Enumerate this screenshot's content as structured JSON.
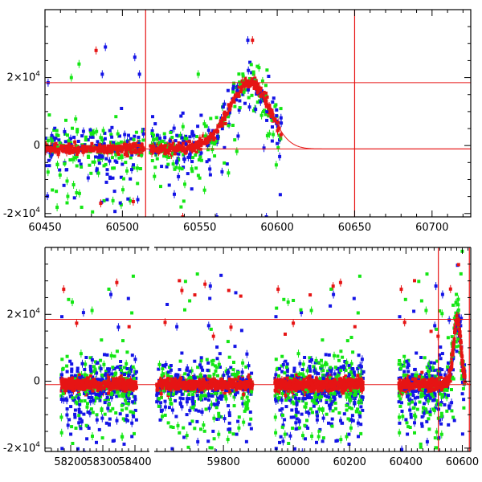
{
  "chart_data": [
    {
      "type": "scatter",
      "panel": "top",
      "title": "",
      "xlabel": "",
      "ylabel": "",
      "xlim": [
        60450,
        60725
      ],
      "ylim": [
        -21000,
        40000
      ],
      "x_ticks": [
        60450,
        60500,
        60550,
        60600,
        60650,
        60700
      ],
      "x_tick_labels": [
        "60450",
        "60500",
        "60550",
        "60600",
        "60650",
        "60700"
      ],
      "y_ticks": [
        -20000,
        0,
        20000
      ],
      "y_tick_labels": [
        {
          "mant": "-2×10",
          "exp": "4"
        },
        {
          "mant": "0",
          "exp": ""
        },
        {
          "mant": "2×10",
          "exp": "4"
        }
      ],
      "hlines": [
        18500,
        -1000
      ],
      "vlines": [
        60515,
        60650
      ],
      "model": {
        "t0": 60583,
        "peak": 18500,
        "rise_scale": 14,
        "decay_scale": 12,
        "baseline": -1000
      },
      "series": [
        {
          "name": "blue",
          "color": "#1414e6"
        },
        {
          "name": "green",
          "color": "#14e614"
        },
        {
          "name": "red",
          "color": "#e61414"
        }
      ],
      "outliers": [
        {
          "series": "blue",
          "x": 60581,
          "y": 31000
        },
        {
          "series": "red",
          "x": 60584,
          "y": 31000
        },
        {
          "series": "blue",
          "x": 60489,
          "y": 29000
        },
        {
          "series": "red",
          "x": 60483,
          "y": 28000
        },
        {
          "series": "green",
          "x": 60472,
          "y": 24000
        },
        {
          "series": "blue",
          "x": 60508,
          "y": 26000
        },
        {
          "series": "blue",
          "x": 60452,
          "y": 18500
        },
        {
          "series": "blue",
          "x": 60487,
          "y": 21000
        },
        {
          "series": "green",
          "x": 60467,
          "y": 20000
        },
        {
          "series": "blue",
          "x": 60511,
          "y": 21000
        },
        {
          "series": "green",
          "x": 60549,
          "y": 21000
        },
        {
          "series": "red",
          "x": 60507,
          "y": -16500
        },
        {
          "series": "red",
          "x": 60486,
          "y": -17000
        },
        {
          "series": "blue",
          "x": 60593,
          "y": -21000
        },
        {
          "series": "blue",
          "x": 60561,
          "y": -21000
        },
        {
          "series": "red",
          "x": 60539,
          "y": -21000
        }
      ]
    },
    {
      "type": "scatter",
      "panel": "bottom",
      "title": "",
      "xlabel": "",
      "ylabel": "",
      "ylim": [
        -21000,
        40000
      ],
      "segments": [
        {
          "xlim": [
            58120,
            58450
          ],
          "x_ticks": [
            58200,
            58300,
            58400
          ],
          "x_tick_labels": [
            "58200",
            "58300",
            "58400"
          ],
          "data_range": [
            58175,
            58405
          ]
        },
        {
          "xlim": [
            59630,
            59900
          ],
          "x_ticks": [
            59800
          ],
          "x_tick_labels": [
            "59800"
          ],
          "data_range": [
            59640,
            59870
          ]
        },
        {
          "xlim": [
            59900,
            60630
          ],
          "x_ticks": [
            60000,
            60200,
            60400,
            60600
          ],
          "x_tick_labels": [
            "60000",
            "60200",
            "60400",
            "60600"
          ],
          "data_range": [
            59935,
            60610
          ]
        }
      ],
      "gaps": [
        [
          58450,
          59630
        ],
        [
          60250,
          60370
        ]
      ],
      "y_ticks": [
        -20000,
        0,
        20000
      ],
      "y_tick_labels": [
        {
          "mant": "-2×10",
          "exp": "4"
        },
        {
          "mant": "0",
          "exp": ""
        },
        {
          "mant": "2×10",
          "exp": "4"
        }
      ],
      "hlines": [
        18500,
        -1000
      ],
      "vlines": [
        60515,
        60625
      ],
      "data_clusters": [
        [
          58170,
          58405
        ],
        [
          59640,
          59870
        ],
        [
          59935,
          60250
        ],
        [
          60375,
          60610
        ]
      ],
      "model": {
        "t0": 60583,
        "peak": 18500,
        "rise_scale": 14,
        "decay_scale": 12,
        "baseline": -1000
      },
      "series": [
        {
          "name": "blue",
          "color": "#1414e6"
        },
        {
          "name": "green",
          "color": "#14e614"
        },
        {
          "name": "red",
          "color": "#e61414"
        }
      ]
    }
  ]
}
